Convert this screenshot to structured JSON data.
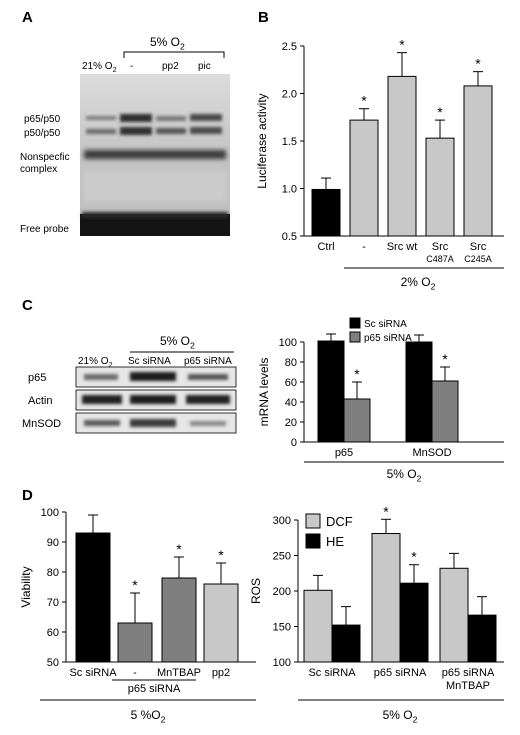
{
  "panel_labels": [
    "A",
    "B",
    "C",
    "D"
  ],
  "panelA": {
    "header": "5% O2",
    "lanes": [
      "21% O2",
      "-",
      "pp2",
      "pic"
    ],
    "band_labels": [
      "p65/p50",
      "p50/p50",
      "Nonspecfic complex",
      "Free probe"
    ]
  },
  "panelC_blot": {
    "header": "5% O2",
    "lanes": [
      "21% O2",
      "Sc siRNA",
      "p65 siRNA"
    ],
    "rows": [
      "p65",
      "Actin",
      "MnSOD"
    ]
  },
  "chart_data": [
    {
      "id": "B",
      "type": "bar",
      "categories": [
        "Ctrl",
        "-",
        "Src wt",
        "Src C487A",
        "Src C245A"
      ],
      "values": [
        0.99,
        1.72,
        2.18,
        1.53,
        2.08
      ],
      "errors": [
        0.12,
        0.12,
        0.25,
        0.19,
        0.15
      ],
      "significant": [
        false,
        true,
        true,
        true,
        true
      ],
      "colors": [
        "#000000",
        "#c8c8c8",
        "#c8c8c8",
        "#c8c8c8",
        "#c8c8c8"
      ],
      "ylabel": "Luciferase activity",
      "ylim": [
        0.5,
        2.5
      ],
      "yticks": [
        "0.5",
        "1.0",
        "1.5",
        "2.0",
        "2.5"
      ],
      "group_label": "2% O2",
      "grid": false
    },
    {
      "id": "C",
      "type": "bar",
      "categories": [
        "p65",
        "MnSOD"
      ],
      "series": [
        {
          "name": "Sc siRNA",
          "color": "#000000",
          "values": [
            101,
            100
          ],
          "errors": [
            7,
            7
          ],
          "significant": [
            false,
            false
          ]
        },
        {
          "name": "p65 siRNA",
          "color": "#7f7f7f",
          "values": [
            43,
            61
          ],
          "errors": [
            17,
            14
          ],
          "significant": [
            true,
            true
          ]
        }
      ],
      "ylabel": "mRNA levels",
      "ylim": [
        0,
        100
      ],
      "yticks": [
        "0",
        "20",
        "40",
        "60",
        "80",
        "100"
      ],
      "group_label": "5% O2",
      "legend": "top-left",
      "grid": false
    },
    {
      "id": "D-left",
      "type": "bar",
      "categories": [
        "Sc siRNA",
        "-",
        "MnTBAP",
        "pp2"
      ],
      "values": [
        93,
        63,
        78,
        76
      ],
      "errors": [
        6,
        10,
        7,
        7
      ],
      "significant": [
        false,
        true,
        true,
        true
      ],
      "colors": [
        "#000000",
        "#7f7f7f",
        "#7f7f7f",
        "#c8c8c8"
      ],
      "ylabel": "Viability",
      "ylim": [
        50,
        100
      ],
      "yticks": [
        "50",
        "60",
        "70",
        "80",
        "90",
        "100"
      ],
      "subgroup_label": "p65 siRNA",
      "group_label": "5 %O2",
      "grid": false
    },
    {
      "id": "D-right",
      "type": "bar",
      "categories": [
        "Sc siRNA",
        "p65 siRNA",
        "p65 siRNA MnTBAP"
      ],
      "series": [
        {
          "name": "DCF",
          "color": "#c8c8c8",
          "values": [
            201,
            281,
            232
          ],
          "errors": [
            21,
            20,
            21
          ],
          "significant": [
            false,
            true,
            false
          ]
        },
        {
          "name": "HE",
          "color": "#000000",
          "values": [
            152,
            211,
            166
          ],
          "errors": [
            26,
            26,
            26
          ],
          "significant": [
            false,
            true,
            false
          ]
        }
      ],
      "ylabel": "ROS",
      "ylim": [
        100,
        300
      ],
      "yticks": [
        "100",
        "150",
        "200",
        "250",
        "300"
      ],
      "group_label": "5% O2",
      "legend": "top-left",
      "grid": false
    }
  ]
}
